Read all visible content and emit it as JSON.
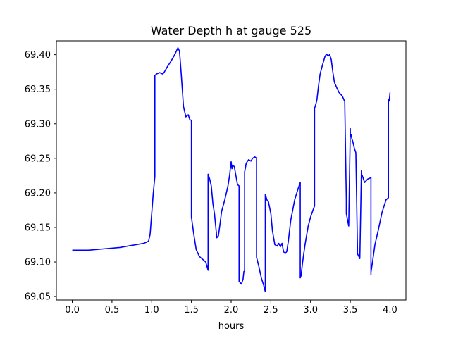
{
  "chart_data": {
    "type": "line",
    "title": "Water Depth h at gauge 525",
    "xlabel": "hours",
    "ylabel": "",
    "xlim": [
      -0.2,
      4.2
    ],
    "ylim": [
      69.045,
      69.42
    ],
    "x_ticks": [
      0.0,
      0.5,
      1.0,
      1.5,
      2.0,
      2.5,
      3.0,
      3.5,
      4.0
    ],
    "x_tick_labels": [
      "0.0",
      "0.5",
      "1.0",
      "1.5",
      "2.0",
      "2.5",
      "3.0",
      "3.5",
      "4.0"
    ],
    "y_ticks": [
      69.05,
      69.1,
      69.15,
      69.2,
      69.25,
      69.3,
      69.35,
      69.4
    ],
    "y_tick_labels": [
      "69.05",
      "69.10",
      "69.15",
      "69.20",
      "69.25",
      "69.30",
      "69.35",
      "69.40"
    ],
    "grid": false,
    "series": [
      {
        "color": "#0000ff",
        "x": [
          0.0,
          0.2,
          0.4,
          0.6,
          0.7,
          0.8,
          0.9,
          0.96,
          0.98,
          1.0,
          1.02,
          1.04,
          1.04,
          1.06,
          1.08,
          1.1,
          1.12,
          1.14,
          1.16,
          1.2,
          1.24,
          1.28,
          1.31,
          1.33,
          1.35,
          1.37,
          1.4,
          1.43,
          1.46,
          1.48,
          1.5,
          1.5,
          1.53,
          1.56,
          1.6,
          1.64,
          1.68,
          1.71,
          1.71,
          1.73,
          1.75,
          1.77,
          1.79,
          1.82,
          1.84,
          1.86,
          1.88,
          1.92,
          1.96,
          1.98,
          2.0,
          2.01,
          2.02,
          2.04,
          2.06,
          2.08,
          2.1,
          2.1,
          2.13,
          2.15,
          2.16,
          2.17,
          2.17,
          2.19,
          2.22,
          2.25,
          2.27,
          2.3,
          2.32,
          2.32,
          2.35,
          2.38,
          2.41,
          2.43,
          2.43,
          2.45,
          2.47,
          2.5,
          2.52,
          2.55,
          2.58,
          2.6,
          2.62,
          2.64,
          2.66,
          2.68,
          2.7,
          2.72,
          2.75,
          2.8,
          2.84,
          2.87,
          2.87,
          2.88,
          2.9,
          2.93,
          2.97,
          3.0,
          3.03,
          3.05,
          3.05,
          3.07,
          3.08,
          3.1,
          3.12,
          3.15,
          3.18,
          3.2,
          3.22,
          3.24,
          3.26,
          3.28,
          3.3,
          3.33,
          3.36,
          3.4,
          3.43,
          3.45,
          3.45,
          3.48,
          3.5,
          3.5,
          3.51,
          3.52,
          3.53,
          3.55,
          3.57,
          3.59,
          3.59,
          3.62,
          3.64,
          3.64,
          3.66,
          3.68,
          3.72,
          3.76,
          3.76,
          3.76,
          3.78,
          3.81,
          3.85,
          3.9,
          3.95,
          3.98,
          3.98,
          3.99,
          4.0
        ],
        "y": [
          69.117,
          69.117,
          69.119,
          69.121,
          69.123,
          69.125,
          69.127,
          69.13,
          69.14,
          69.17,
          69.2,
          69.224,
          69.37,
          69.372,
          69.373,
          69.374,
          69.373,
          69.372,
          69.375,
          69.383,
          69.39,
          69.398,
          69.405,
          69.41,
          69.405,
          69.375,
          69.325,
          69.31,
          69.313,
          69.306,
          69.305,
          69.165,
          69.14,
          69.118,
          69.108,
          69.104,
          69.1,
          69.088,
          69.227,
          69.22,
          69.21,
          69.185,
          69.17,
          69.135,
          69.138,
          69.155,
          69.173,
          69.19,
          69.21,
          69.225,
          69.245,
          69.235,
          69.24,
          69.238,
          69.225,
          69.212,
          69.21,
          69.072,
          69.068,
          69.075,
          69.086,
          69.087,
          69.23,
          69.243,
          69.248,
          69.246,
          69.25,
          69.252,
          69.25,
          69.107,
          69.093,
          69.077,
          69.066,
          69.057,
          69.198,
          69.19,
          69.187,
          69.17,
          69.145,
          69.125,
          69.123,
          69.127,
          69.122,
          69.127,
          69.115,
          69.112,
          69.115,
          69.13,
          69.16,
          69.19,
          69.205,
          69.215,
          69.077,
          69.08,
          69.1,
          69.125,
          69.152,
          69.165,
          69.175,
          69.181,
          69.322,
          69.33,
          69.335,
          69.355,
          69.372,
          69.385,
          69.397,
          69.401,
          69.398,
          69.4,
          69.393,
          69.375,
          69.36,
          69.352,
          69.345,
          69.34,
          69.332,
          69.19,
          69.17,
          69.152,
          69.293,
          69.282,
          69.284,
          69.278,
          69.275,
          69.265,
          69.258,
          69.12,
          69.112,
          69.105,
          69.232,
          69.228,
          69.222,
          69.215,
          69.22,
          69.222,
          69.082,
          69.085,
          69.1,
          69.125,
          69.145,
          69.172,
          69.19,
          69.193,
          69.335,
          69.333,
          69.345
        ]
      }
    ]
  }
}
